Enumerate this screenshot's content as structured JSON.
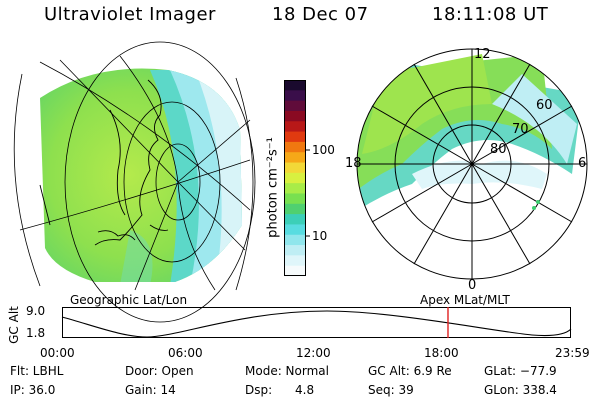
{
  "header": {
    "instrument": "Ultraviolet Imager",
    "date": "18 Dec 07",
    "time": "18:11:08 UT"
  },
  "colorbar": {
    "unit_label": "photon cm⁻²s⁻¹",
    "ticks": [
      "100",
      "10"
    ],
    "colors": [
      "#1a0a2e",
      "#3a0e4a",
      "#600c3a",
      "#8a0a22",
      "#b81818",
      "#e03a10",
      "#f07810",
      "#f6a818",
      "#f2d838",
      "#d8f040",
      "#a8ec48",
      "#78e050",
      "#50d070",
      "#3ccfb8",
      "#58dce0",
      "#90e6ec",
      "#bfeef4",
      "#dff6fa",
      "#f6fbfc"
    ]
  },
  "left_panel": {
    "caption": "Geographic Lat/Lon"
  },
  "right_panel": {
    "caption": "Apex MLat/MLT",
    "mlt_labels": {
      "top": "12",
      "left": "18",
      "right": "6",
      "bottom": "0"
    },
    "lat_labels": [
      "60",
      "70",
      "80"
    ]
  },
  "timeline": {
    "ylabel": "GC Alt",
    "y_ticks": [
      "9.0",
      "1.8"
    ],
    "x_ticks": [
      "00:00",
      "06:00",
      "12:00",
      "18:00",
      "23:59"
    ],
    "marker_hour": 18.2,
    "marker_color": "#e02020"
  },
  "info": {
    "flt": "Flt: LBHL",
    "ip": "IP: 36.0",
    "door": "Door: Open",
    "gain": "Gain: 14",
    "mode": "Mode: Normal",
    "dsp": "Dsp:      4.8",
    "gcalt": "GC Alt: 6.9 Re",
    "seq": "Seq: 39",
    "glat": "GLat: −77.9",
    "glon": "GLon: 338.4"
  }
}
